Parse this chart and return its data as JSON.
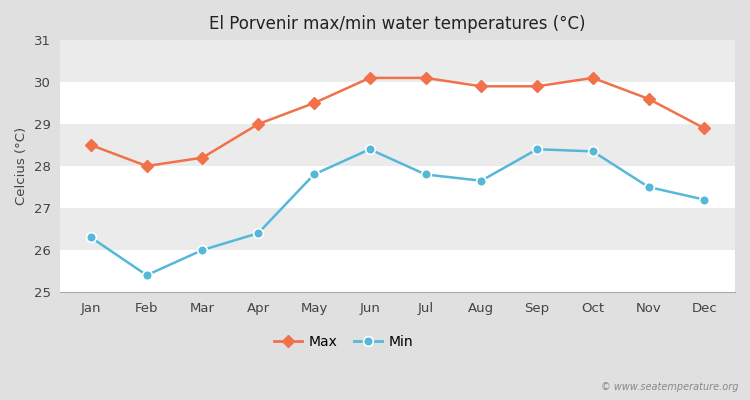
{
  "title": "El Porvenir max/min water temperatures (°C)",
  "ylabel": "Celcius (°C)",
  "months": [
    "Jan",
    "Feb",
    "Mar",
    "Apr",
    "May",
    "Jun",
    "Jul",
    "Aug",
    "Sep",
    "Oct",
    "Nov",
    "Dec"
  ],
  "max_temps": [
    28.5,
    28.0,
    28.2,
    29.0,
    29.5,
    30.1,
    30.1,
    29.9,
    29.9,
    30.1,
    29.6,
    28.9
  ],
  "min_temps": [
    26.3,
    25.4,
    26.0,
    26.4,
    27.8,
    28.4,
    27.8,
    27.65,
    28.4,
    28.35,
    27.5,
    27.2
  ],
  "max_color": "#f0714a",
  "min_color": "#55b8d8",
  "fig_bg_color": "#e0e0e0",
  "plot_bg_color": "#ebebeb",
  "band_color": "#e3e3e3",
  "grid_color": "#ffffff",
  "ylim": [
    25,
    31
  ],
  "yticks": [
    25,
    26,
    27,
    28,
    29,
    30,
    31
  ],
  "watermark": "© www.seatemperature.org",
  "legend_max": "Max",
  "legend_min": "Min"
}
